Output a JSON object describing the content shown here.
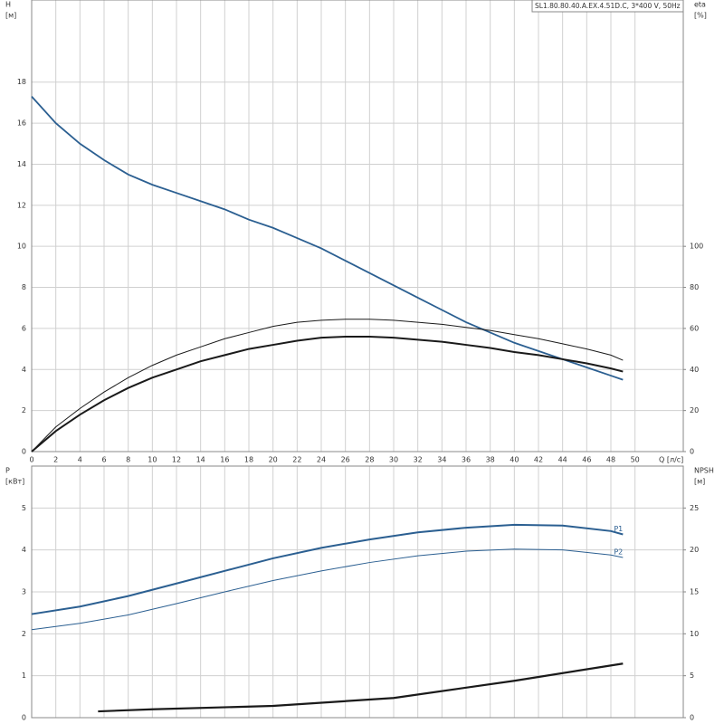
{
  "chart_data": [
    {
      "type": "line",
      "title": "SL1.80.80.40.A.EX.4.51D.C, 3*400 V, 50Hz",
      "ylabel": "H",
      "yunit": "[м]",
      "y2label": "eta",
      "y2unit": "[%]",
      "xlabel": "Q [л/с]",
      "xlim": [
        0,
        54
      ],
      "xticks": [
        0,
        2,
        4,
        6,
        8,
        10,
        12,
        14,
        16,
        18,
        20,
        22,
        24,
        26,
        28,
        30,
        32,
        34,
        36,
        38,
        40,
        42,
        44,
        46,
        48,
        50
      ],
      "ylim": [
        0,
        22
      ],
      "yticks": [
        0,
        2,
        4,
        6,
        8,
        10,
        12,
        14,
        16,
        18
      ],
      "y2lim": [
        0,
        220
      ],
      "y2ticks": [
        0,
        20,
        40,
        60,
        80,
        100
      ],
      "grid": true,
      "series": [
        {
          "color": "#2b5f91",
          "width": 1.8,
          "x": [
            0,
            2,
            4,
            6,
            8,
            10,
            12,
            14,
            16,
            18,
            20,
            22,
            24,
            26,
            28,
            30,
            32,
            34,
            36,
            38,
            40,
            42,
            44,
            46,
            48,
            49
          ],
          "values": [
            17.3,
            16.0,
            15.0,
            14.2,
            13.5,
            13.0,
            12.6,
            12.2,
            11.8,
            11.3,
            10.9,
            10.4,
            9.9,
            9.3,
            8.7,
            8.1,
            7.5,
            6.9,
            6.3,
            5.8,
            5.3,
            4.9,
            4.5,
            4.1,
            3.7,
            3.5
          ]
        },
        {
          "color": "#1a1a1a",
          "width": 1,
          "axis": "y2",
          "x": [
            0,
            2,
            4,
            6,
            8,
            10,
            12,
            14,
            16,
            18,
            20,
            22,
            24,
            26,
            28,
            30,
            32,
            34,
            36,
            38,
            40,
            42,
            44,
            46,
            48,
            49
          ],
          "values": [
            0,
            12,
            21,
            29,
            36,
            42,
            47,
            51,
            55,
            58,
            61,
            63,
            64,
            64.5,
            64.5,
            64,
            63,
            62,
            60.5,
            59,
            57,
            55,
            52.5,
            50,
            47,
            44.5
          ]
        },
        {
          "color": "#1a1a1a",
          "width": 2,
          "axis": "y2",
          "x": [
            0,
            2,
            4,
            6,
            8,
            10,
            12,
            14,
            16,
            18,
            20,
            22,
            24,
            26,
            28,
            30,
            32,
            34,
            36,
            38,
            40,
            42,
            44,
            46,
            48,
            49
          ],
          "values": [
            0,
            10,
            18,
            25,
            31,
            36,
            40,
            44,
            47,
            50,
            52,
            54,
            55.5,
            56,
            56,
            55.5,
            54.5,
            53.5,
            52,
            50.5,
            48.5,
            47,
            45,
            43,
            40.5,
            39
          ]
        }
      ]
    },
    {
      "type": "line",
      "ylabel": "P",
      "yunit": "[кВт]",
      "y2label": "NPSH",
      "y2unit": "[м]",
      "xlim": [
        0,
        54
      ],
      "xticks": [
        0,
        2,
        4,
        6,
        8,
        10,
        12,
        14,
        16,
        18,
        20,
        22,
        24,
        26,
        28,
        30,
        32,
        34,
        36,
        38,
        40,
        42,
        44,
        46,
        48,
        50
      ],
      "ylim": [
        0,
        6
      ],
      "yticks": [
        0,
        1,
        2,
        3,
        4,
        5
      ],
      "y2lim": [
        0,
        30
      ],
      "y2ticks": [
        0,
        5,
        10,
        15,
        20,
        25
      ],
      "grid": true,
      "series": [
        {
          "name": "P1",
          "color": "#2b5f91",
          "width": 2,
          "x": [
            0,
            4,
            8,
            12,
            16,
            20,
            24,
            28,
            32,
            36,
            40,
            44,
            48,
            49
          ],
          "values": [
            2.47,
            2.65,
            2.9,
            3.2,
            3.5,
            3.8,
            4.05,
            4.25,
            4.42,
            4.53,
            4.6,
            4.58,
            4.45,
            4.37
          ]
        },
        {
          "name": "P2",
          "color": "#2b5f91",
          "width": 1,
          "x": [
            0,
            4,
            8,
            12,
            16,
            20,
            24,
            28,
            32,
            36,
            40,
            44,
            48,
            49
          ],
          "values": [
            2.1,
            2.25,
            2.45,
            2.72,
            3.0,
            3.27,
            3.5,
            3.7,
            3.86,
            3.97,
            4.02,
            4.0,
            3.88,
            3.82
          ]
        },
        {
          "color": "#1a1a1a",
          "width": 2.2,
          "axis": "y2",
          "x": [
            5.5,
            10,
            20,
            30,
            40,
            49
          ],
          "values": [
            0.75,
            1.0,
            1.4,
            2.35,
            4.4,
            6.45
          ]
        }
      ]
    }
  ]
}
